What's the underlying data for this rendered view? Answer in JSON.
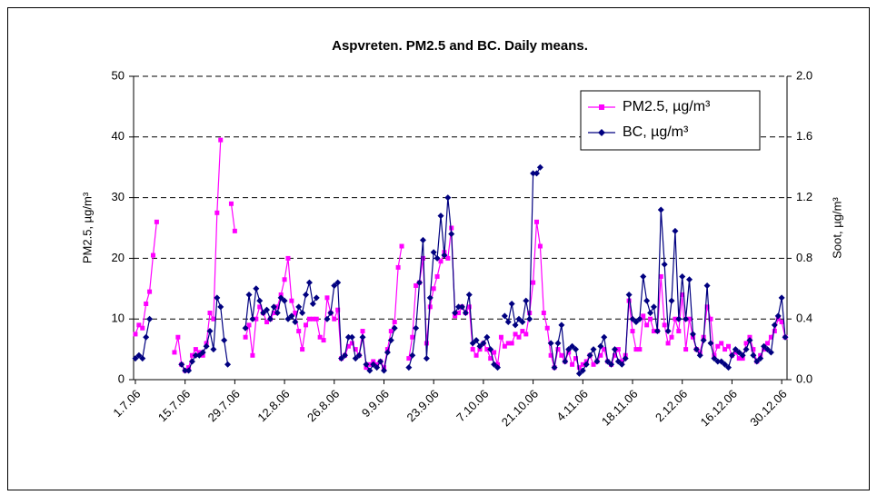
{
  "chart_data": {
    "type": "line",
    "title": "Aspvreten. PM2.5 and BC. Daily means.",
    "ylabel": "PM2.5, µg/m³",
    "y2label": "Soot, µg/m³",
    "legend": "top-right",
    "grid": true,
    "ylim": [
      0,
      50
    ],
    "yticks": [
      0,
      10,
      20,
      30,
      40,
      50
    ],
    "y2lim": [
      0,
      2
    ],
    "y2ticks": [
      {
        "value": 0,
        "label": "0.0"
      },
      0.4,
      0.8,
      1.2,
      1.6,
      {
        "value": 2,
        "label": "2.0"
      }
    ],
    "categories": [
      "1.7.06",
      null,
      null,
      null,
      null,
      null,
      null,
      null,
      null,
      null,
      null,
      null,
      null,
      null,
      "15.7.06",
      null,
      null,
      null,
      null,
      null,
      null,
      null,
      null,
      null,
      null,
      null,
      null,
      null,
      "29.7.06",
      null,
      null,
      null,
      null,
      null,
      null,
      null,
      null,
      null,
      null,
      null,
      null,
      null,
      "12.8.06",
      null,
      null,
      null,
      null,
      null,
      null,
      null,
      null,
      null,
      null,
      null,
      null,
      null,
      "26.8.06",
      null,
      null,
      null,
      null,
      null,
      null,
      null,
      null,
      null,
      null,
      null,
      null,
      null,
      "9.9.06",
      null,
      null,
      null,
      null,
      null,
      null,
      null,
      null,
      null,
      null,
      null,
      null,
      null,
      "23.9.06",
      null,
      null,
      null,
      null,
      null,
      null,
      null,
      null,
      null,
      null,
      null,
      null,
      null,
      "7.10.06",
      null,
      null,
      null,
      null,
      null,
      null,
      null,
      null,
      null,
      null,
      null,
      null,
      null,
      "21.10.06",
      null,
      null,
      null,
      null,
      null,
      null,
      null,
      null,
      null,
      null,
      null,
      null,
      null,
      "4.11.06",
      null,
      null,
      null,
      null,
      null,
      null,
      null,
      null,
      null,
      null,
      null,
      null,
      null,
      "18.11.06",
      null,
      null,
      null,
      null,
      null,
      null,
      null,
      null,
      null,
      null,
      null,
      null,
      null,
      "2.12.06",
      null,
      null,
      null,
      null,
      null,
      null,
      null,
      null,
      null,
      null,
      null,
      null,
      null,
      "16.12.06",
      null,
      null,
      null,
      null,
      null,
      null,
      null,
      null,
      null,
      null,
      null,
      null,
      null,
      "30.12.06",
      null
    ],
    "series": [
      {
        "name": "PM2.5, µg/m³",
        "color": "#ff00ff",
        "marker": "square",
        "values": [
          7.5,
          9,
          8.5,
          12.5,
          14.5,
          20.5,
          26,
          null,
          null,
          null,
          null,
          4.5,
          7,
          2.5,
          1.5,
          2,
          4,
          5,
          4.5,
          4,
          6,
          11,
          10,
          27.5,
          39.5,
          null,
          null,
          29,
          24.5,
          null,
          null,
          7,
          9,
          4,
          10,
          12,
          11,
          9.5,
          10,
          11,
          12,
          14,
          16.5,
          20,
          13,
          11,
          8,
          5,
          9,
          10,
          10,
          10,
          7,
          6.5,
          13.5,
          11,
          10,
          11.5,
          3.5,
          4,
          5.5,
          6,
          5,
          4,
          8,
          2,
          2.5,
          3,
          2.5,
          3,
          2,
          5,
          8,
          9.5,
          18.5,
          22,
          null,
          3.5,
          7,
          15.5,
          16,
          20,
          6,
          12,
          15,
          17,
          19.5,
          21,
          20,
          25,
          10.5,
          11,
          12,
          11,
          12,
          5,
          4,
          5,
          6,
          5,
          3.5,
          4.5,
          2.5,
          7,
          5.5,
          6,
          6,
          7.5,
          7,
          8,
          7.5,
          11,
          16,
          26,
          22,
          11,
          8.5,
          4,
          2,
          5,
          4,
          3,
          4.5,
          2.5,
          3.5,
          2,
          2.5,
          3,
          4,
          2.5,
          3,
          4,
          5,
          3,
          2.5,
          4,
          5,
          3,
          4,
          13,
          8,
          5,
          5,
          10.5,
          9,
          10,
          8,
          8,
          17,
          9,
          6,
          7,
          10,
          8,
          14,
          5,
          10,
          7,
          5,
          4.5,
          7,
          12,
          10,
          4,
          5.5,
          6,
          5,
          5.5,
          4,
          4.5,
          3.5,
          3.5,
          6,
          7,
          5,
          3,
          4,
          5,
          6,
          7,
          8,
          10,
          9.5,
          7
        ]
      },
      {
        "name": "BC, µg/m³",
        "color": "#000080",
        "marker": "diamond",
        "axis": "y2",
        "values": [
          0.14,
          0.16,
          0.14,
          0.28,
          0.4,
          null,
          null,
          null,
          null,
          null,
          null,
          null,
          null,
          0.1,
          0.06,
          0.06,
          0.12,
          0.16,
          0.16,
          0.18,
          0.22,
          0.32,
          0.2,
          0.54,
          0.48,
          0.26,
          0.1,
          null,
          null,
          null,
          null,
          0.34,
          0.56,
          0.4,
          0.6,
          0.52,
          0.44,
          0.46,
          0.4,
          0.48,
          0.44,
          0.54,
          0.52,
          0.4,
          0.42,
          0.38,
          0.48,
          0.44,
          0.56,
          0.64,
          0.5,
          0.54,
          null,
          null,
          0.4,
          0.44,
          0.62,
          0.64,
          0.14,
          0.16,
          0.28,
          0.28,
          0.14,
          0.16,
          0.28,
          0.1,
          0.06,
          0.1,
          0.08,
          0.12,
          0.06,
          0.18,
          0.26,
          0.34,
          null,
          null,
          null,
          0.08,
          0.16,
          0.34,
          0.64,
          0.92,
          0.14,
          0.54,
          0.84,
          0.8,
          1.08,
          0.82,
          1.2,
          0.96,
          0.44,
          0.48,
          0.48,
          0.44,
          0.56,
          0.24,
          0.26,
          0.22,
          0.24,
          0.28,
          0.2,
          0.1,
          0.08,
          null,
          0.42,
          0.38,
          0.5,
          0.36,
          0.4,
          0.38,
          0.52,
          0.4,
          1.36,
          1.36,
          1.4,
          null,
          null,
          0.24,
          0.08,
          0.24,
          0.36,
          0.12,
          0.2,
          0.22,
          0.2,
          0.04,
          0.06,
          0.1,
          0.16,
          0.2,
          0.12,
          0.22,
          0.28,
          0.12,
          0.1,
          0.2,
          0.12,
          0.1,
          0.14,
          0.56,
          0.4,
          0.38,
          0.4,
          0.68,
          0.52,
          0.44,
          0.48,
          0.32,
          1.12,
          0.76,
          0.32,
          0.52,
          0.98,
          0.4,
          0.68,
          0.4,
          0.66,
          0.3,
          0.2,
          0.16,
          0.26,
          0.62,
          0.24,
          0.14,
          0.12,
          0.12,
          0.1,
          0.08,
          0.16,
          0.2,
          0.18,
          0.16,
          0.2,
          0.26,
          0.16,
          0.12,
          0.14,
          0.22,
          0.2,
          0.18,
          0.36,
          0.42,
          0.54,
          0.28
        ]
      }
    ]
  }
}
